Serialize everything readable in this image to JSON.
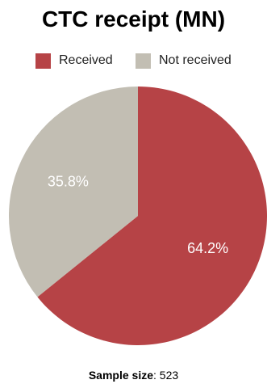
{
  "chart_data": {
    "type": "pie",
    "title": "CTC receipt (MN)",
    "categories": [
      "Received",
      "Not received"
    ],
    "values": [
      64.2,
      35.8
    ],
    "value_labels": [
      "64.2%",
      "35.8%"
    ],
    "colors": [
      "#b64346",
      "#c2beb3"
    ],
    "legend_position": "top",
    "sample_size_label": "Sample size",
    "sample_size_value": "523"
  }
}
